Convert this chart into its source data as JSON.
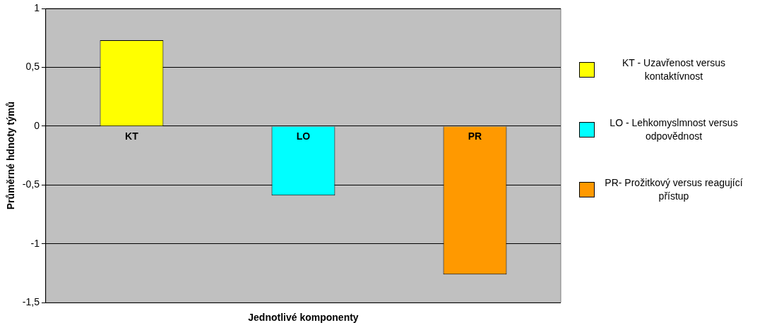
{
  "chart_data": {
    "type": "bar",
    "xlabel": "Jednotlivé komponenty",
    "ylabel": "Průměrné hdnoty týmů",
    "categories": [
      "KT",
      "LO",
      "PR"
    ],
    "series": [
      {
        "name": "KT - Uzavřenost versus kontaktívnost",
        "color": "#ffff00",
        "values": [
          0.73,
          null,
          null
        ]
      },
      {
        "name": "LO - Lehkomyslmnost versus odpovědnost",
        "color": "#00ffff",
        "values": [
          null,
          -0.59,
          null
        ]
      },
      {
        "name": "PR- Prožitkový versus reagující přístup",
        "color": "#ff9900",
        "values": [
          null,
          null,
          -1.26
        ]
      }
    ],
    "ylim": [
      -1.5,
      1
    ],
    "yticks": [
      {
        "value": -1.5,
        "label": "-1,5"
      },
      {
        "value": -1,
        "label": "-1"
      },
      {
        "value": -0.5,
        "label": "-0,5"
      },
      {
        "value": 0,
        "label": "0"
      },
      {
        "value": 0.5,
        "label": "0,5"
      },
      {
        "value": 1,
        "label": "1"
      }
    ],
    "grid": "y",
    "legend": "right"
  }
}
